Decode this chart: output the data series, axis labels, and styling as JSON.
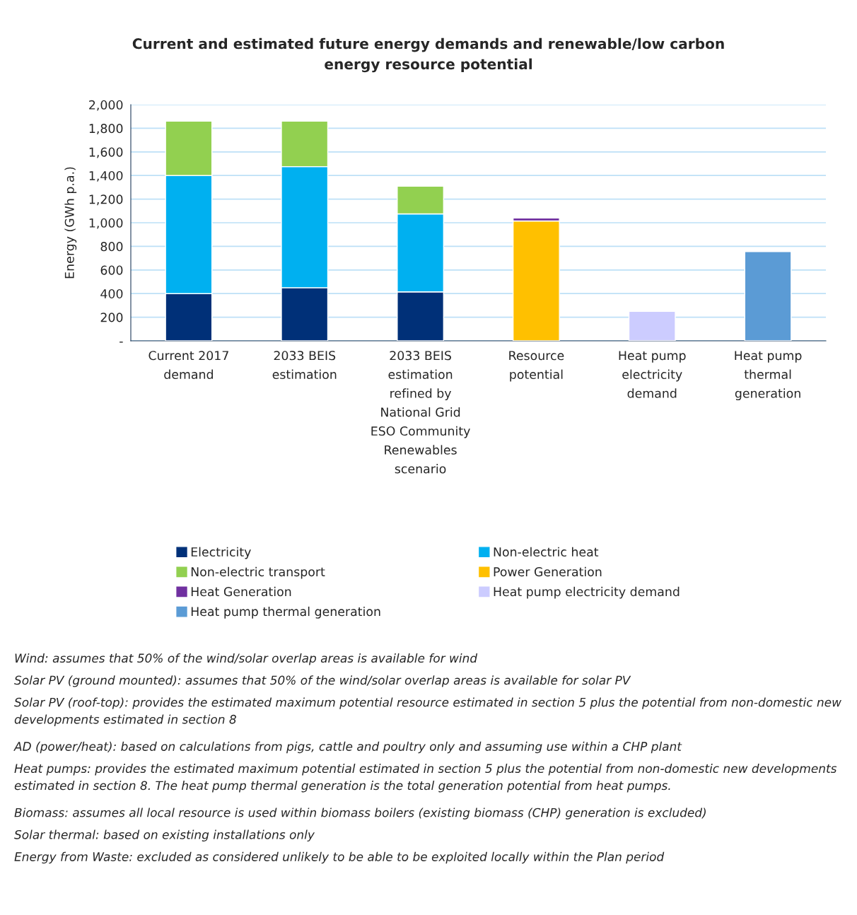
{
  "chart_data": {
    "type": "bar",
    "stacked": true,
    "title": "Current and estimated future energy demands and renewable/low carbon energy resource potential",
    "ylabel": "Energy (GWh p.a.)",
    "categories": [
      "Current 2017 demand",
      "2033 BEIS estimation",
      "2033 BEIS estimation refined by National Grid ESO Community Renewables scenario",
      "Resource potential",
      "Heat pump electricity demand",
      "Heat pump thermal generation"
    ],
    "series": [
      {
        "name": "Electricity",
        "color": "#003078",
        "values": [
          400,
          450,
          415,
          null,
          null,
          null
        ]
      },
      {
        "name": "Non-electric heat",
        "color": "#00b0f0",
        "values": [
          1000,
          1025,
          660,
          null,
          null,
          null
        ]
      },
      {
        "name": "Non-electric transport",
        "color": "#92d050",
        "values": [
          460,
          385,
          235,
          null,
          null,
          null
        ]
      },
      {
        "name": "Power Generation",
        "color": "#ffc000",
        "values": [
          null,
          null,
          null,
          1015,
          null,
          null
        ]
      },
      {
        "name": "Heat Generation",
        "color": "#7030a0",
        "values": [
          null,
          null,
          null,
          25,
          null,
          null
        ]
      },
      {
        "name": "Heat pump electricity demand",
        "color": "#ccccff",
        "values": [
          null,
          null,
          null,
          null,
          250,
          null
        ]
      },
      {
        "name": "Heat pump thermal generation",
        "color": "#5b9bd5",
        "values": [
          null,
          null,
          null,
          null,
          null,
          755
        ]
      }
    ],
    "ylim": [
      0,
      2000
    ],
    "yticks": [
      {
        "value": 0,
        "label": "-"
      },
      {
        "value": 200,
        "label": "200"
      },
      {
        "value": 400,
        "label": "400"
      },
      {
        "value": 600,
        "label": "600"
      },
      {
        "value": 800,
        "label": "800"
      },
      {
        "value": 1000,
        "label": "1,000"
      },
      {
        "value": 1200,
        "label": "1,200"
      },
      {
        "value": 1400,
        "label": "1,400"
      },
      {
        "value": 1600,
        "label": "1,600"
      },
      {
        "value": 1800,
        "label": "1,800"
      },
      {
        "value": 2000,
        "label": "2,000"
      }
    ],
    "grid": "y",
    "legend": "bottom",
    "annotations": [
      "Wind: assumes that 50% of the wind/solar overlap areas is available for wind",
      "Solar PV (ground mounted): assumes that 50% of the wind/solar overlap areas is available for solar PV",
      "Solar PV (roof-top): provides the estimated maximum potential resource estimated in section 5 plus the potential from non-domestic new developments estimated in section 8",
      "AD (power/heat): based on calculations from pigs, cattle and poultry only and assuming use within a CHP plant",
      "Heat pumps: provides the estimated maximum potential estimated in section 5 plus the potential from non-domestic new developments estimated in section 8. The heat pump thermal generation is the total generation potential from heat pumps.",
      "Biomass: assumes all local resource is used within biomass boilers (existing biomass (CHP) generation is excluded)",
      "Solar thermal: based on existing installations only",
      "Energy from Waste: excluded as considered unlikely to be able to be exploited locally within the Plan period"
    ]
  }
}
